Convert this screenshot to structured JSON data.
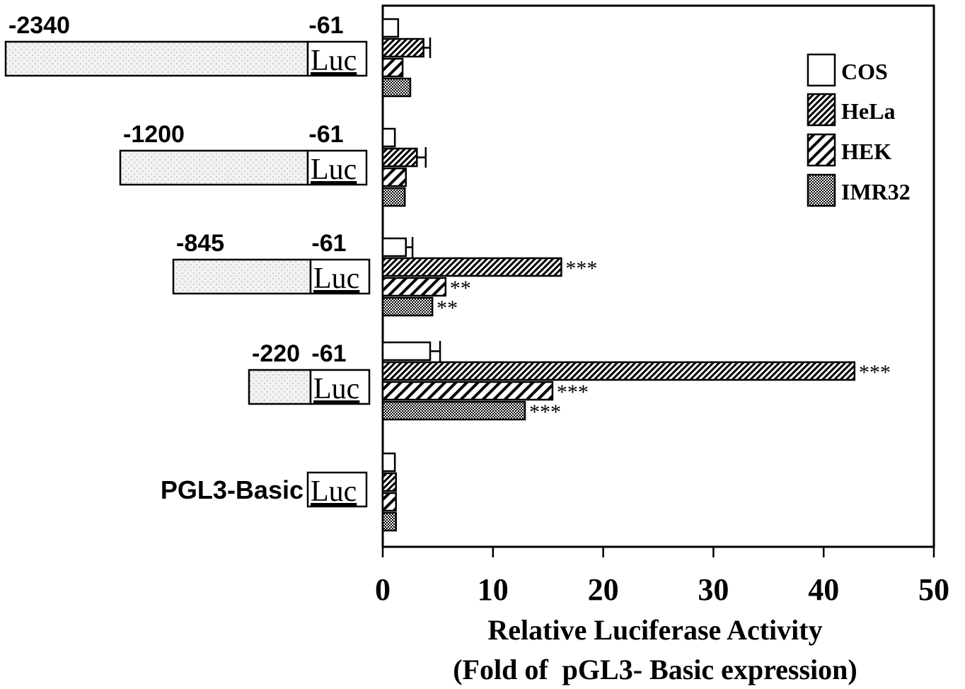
{
  "chart_data": {
    "type": "bar",
    "orientation": "horizontal",
    "xlabel": "Relative Luciferase Activity",
    "xlabel2": "(Fold of  pGL3- Basic expression)",
    "xlim": [
      0,
      50
    ],
    "xticks": [
      "0",
      "10",
      "20",
      "30",
      "40",
      "50"
    ],
    "grid": false,
    "legend_position": "top-right",
    "luc_label": "Luc",
    "series": [
      {
        "name": "COS",
        "pattern": "open",
        "values": [
          1.4,
          1.1,
          2.1,
          4.3,
          1.1
        ],
        "errors": [
          0,
          0,
          0.6,
          0.9,
          0
        ]
      },
      {
        "name": "HeLa",
        "pattern": "fine-hatch",
        "values": [
          3.7,
          3.1,
          16.2,
          42.8,
          1.2
        ],
        "errors": [
          0.6,
          0.8,
          0,
          0,
          0
        ]
      },
      {
        "name": "HEK",
        "pattern": "wide-hatch",
        "values": [
          1.8,
          2.1,
          5.7,
          15.4,
          1.2
        ],
        "errors": [
          0,
          0,
          0,
          0,
          0
        ]
      },
      {
        "name": "IMR32",
        "pattern": "dots",
        "values": [
          2.5,
          2.0,
          4.5,
          12.9,
          1.2
        ],
        "errors": [
          0,
          0,
          0,
          0,
          0
        ]
      }
    ],
    "significance": [
      [
        null,
        null,
        null,
        null
      ],
      [
        null,
        null,
        null,
        null
      ],
      [
        null,
        "***",
        "**",
        "**"
      ],
      [
        null,
        "***",
        "***",
        "***"
      ],
      [
        null,
        null,
        null,
        null
      ]
    ],
    "constructs": [
      {
        "start": "-2340",
        "end": "-61",
        "start_pos": -2340
      },
      {
        "start": "-1200",
        "end": "-61",
        "start_pos": -1200
      },
      {
        "start": "-845",
        "end": "-61",
        "start_pos": -845
      },
      {
        "start": "-220",
        "end": "-61",
        "start_pos": -220
      },
      {
        "name": "PGL3-Basic"
      }
    ]
  }
}
